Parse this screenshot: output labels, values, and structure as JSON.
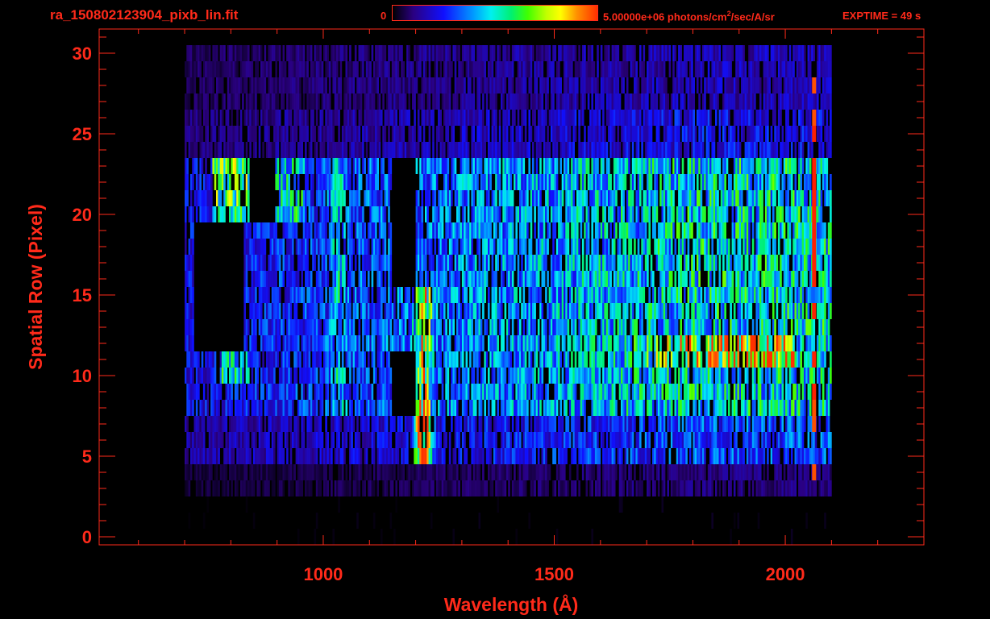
{
  "header": {
    "filename": "ra_150802123904_pixb_lin.fit",
    "colorbar_min": "0",
    "colorbar_max_pre": "5.00000e+06 photons/cm",
    "colorbar_max_sup": "2",
    "colorbar_max_post": "/sec/A/sr",
    "exptime": "EXPTIME = 49 s"
  },
  "chart_data": {
    "type": "heatmap",
    "title": "",
    "xlabel": "Wavelength (Å)",
    "ylabel": "Spatial Row (Pixel)",
    "xlim": [
      515,
      2300
    ],
    "ylim": [
      -0.5,
      31.5
    ],
    "xticks": [
      1000,
      1500,
      2000
    ],
    "yticks": [
      0,
      5,
      10,
      15,
      20,
      25,
      30
    ],
    "rows": 32,
    "color_scale": {
      "min": 0,
      "max": 5000000,
      "units": "photons/cm^2/sec/A/sr"
    },
    "colors": {
      "axis": "#ff2a1a",
      "background": "#000000"
    },
    "data_extent_x": [
      700,
      2100
    ],
    "features": [
      {
        "wavelength": 1216,
        "rows": [
          5,
          15
        ],
        "level": "high"
      },
      {
        "wavelength": 2060,
        "rows": [
          3,
          30
        ],
        "level": "high"
      },
      {
        "wavelength_range": [
          760,
          840
        ],
        "rows": [
          20,
          23
        ],
        "level": "high"
      },
      {
        "wavelength_range": [
          900,
          960
        ],
        "rows": [
          20,
          23
        ],
        "level": "medium"
      },
      {
        "wavelength_range": [
          1700,
          2020
        ],
        "rows": [
          11,
          12
        ],
        "level": "high"
      }
    ]
  }
}
